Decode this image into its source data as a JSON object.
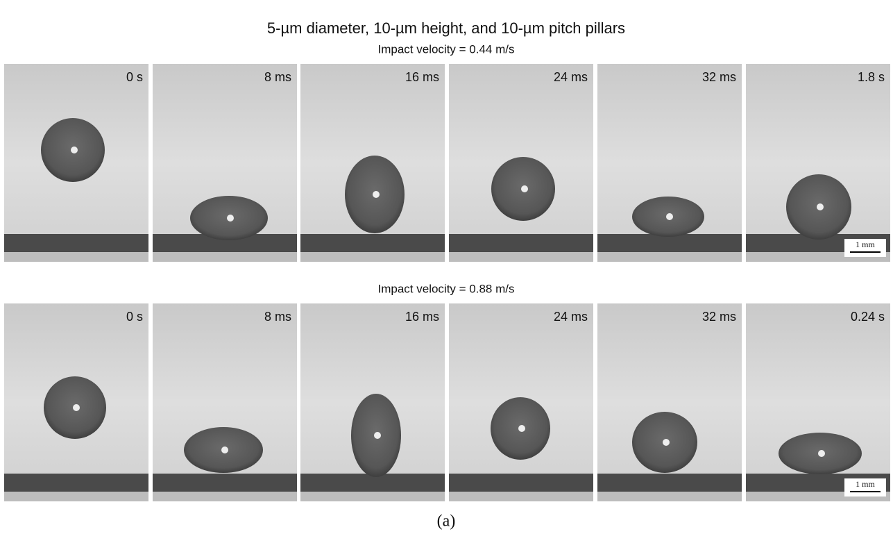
{
  "title": "5-µm diameter, 10-µm height,  and 10-µm pitch pillars",
  "rows": [
    {
      "label": "Impact velocity = 0.44 m/s",
      "frames": [
        "0 s",
        "8 ms",
        "16 ms",
        "24 ms",
        "32 ms",
        "1.8 s"
      ],
      "scale_bar": "1 mm"
    },
    {
      "label": "Impact velocity = 0.88 m/s",
      "frames": [
        "0 s",
        "8 ms",
        "16 ms",
        "24 ms",
        "32 ms",
        "0.24 s"
      ],
      "scale_bar": "1 mm"
    }
  ],
  "caption": "(a)"
}
